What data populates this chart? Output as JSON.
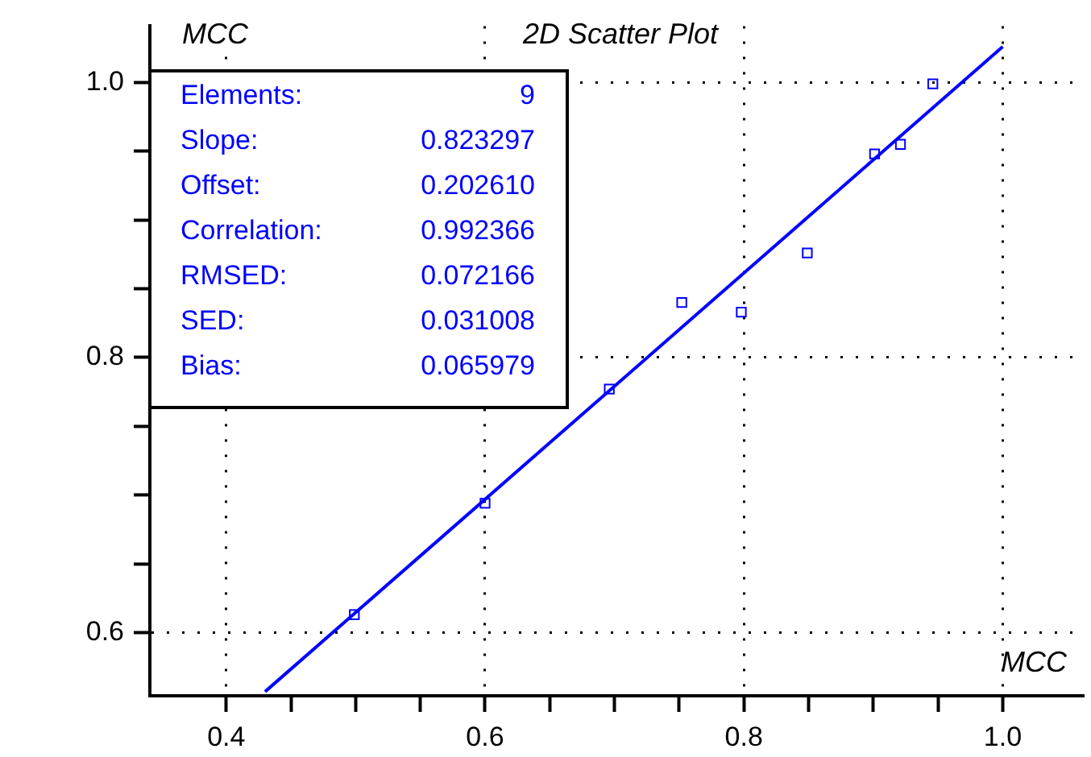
{
  "chart_data": {
    "type": "scatter",
    "title": "2D Scatter Plot",
    "xlabel": "MCC",
    "ylabel": "MCC",
    "xlim": [
      0.341,
      1.062
    ],
    "ylim": [
      0.554,
      1.041
    ],
    "xticks": [
      0.4,
      {
        "value": 0.45,
        "label": null
      },
      {
        "value": 0.5,
        "label": null
      },
      {
        "value": 0.55,
        "label": null
      },
      0.6,
      {
        "value": 0.65,
        "label": null
      },
      {
        "value": 0.7,
        "label": null
      },
      {
        "value": 0.75,
        "label": null
      },
      0.8,
      {
        "value": 0.85,
        "label": null
      },
      {
        "value": 0.9,
        "label": null
      },
      {
        "value": 0.95,
        "label": null
      },
      {
        "value": 1,
        "label": "1.0"
      }
    ],
    "yticks": [
      0.6,
      {
        "value": 0.65,
        "label": null
      },
      {
        "value": 0.7,
        "label": null
      },
      {
        "value": 0.75,
        "label": null
      },
      0.8,
      {
        "value": 0.85,
        "label": null
      },
      {
        "value": 0.9,
        "label": null
      },
      {
        "value": 0.95,
        "label": null
      },
      {
        "value": 1,
        "label": "1.0"
      }
    ],
    "grid": true,
    "series": [
      {
        "type": "scatter",
        "color": "#0000ff",
        "marker": "square",
        "x": [
          0.499,
          0.6,
          0.696,
          0.752,
          0.798,
          0.849,
          0.901,
          0.921,
          0.946
        ],
        "values": [
          0.613,
          0.694,
          0.777,
          0.84,
          0.833,
          0.876,
          0.948,
          0.955,
          0.999
        ]
      },
      {
        "type": "line",
        "color": "#0000ff",
        "marker": "none",
        "x": [
          0.43,
          1.0
        ],
        "values": [
          0.557,
          1.026
        ]
      }
    ],
    "annotations": [
      "Elements: 9",
      "Slope: 0.823297",
      "Offset: 0.202610",
      "Correlation: 0.992366",
      "RMSED: 0.072166",
      "SED: 0.031008",
      "Bias: 0.065979"
    ]
  }
}
